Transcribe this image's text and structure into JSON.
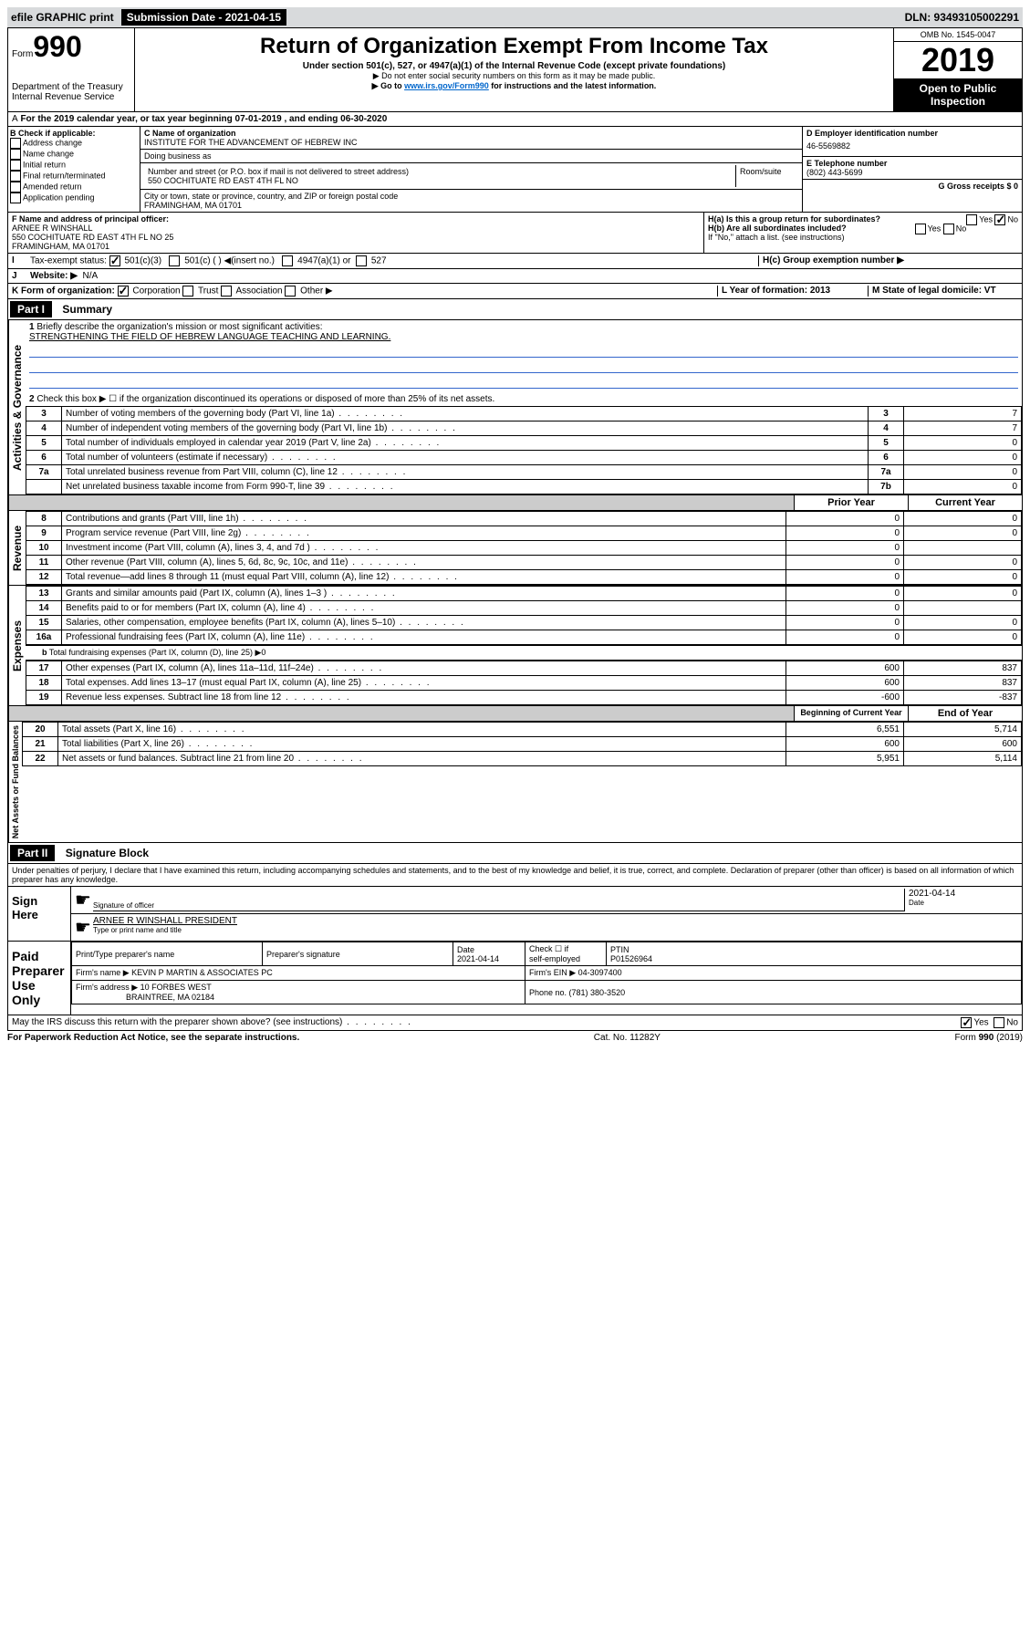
{
  "topbar": {
    "efile": "efile GRAPHIC print",
    "submission": "Submission Date - 2021-04-15",
    "dln": "DLN: 93493105002291"
  },
  "titleblock": {
    "form_word": "Form",
    "form_num": "990",
    "dept": "Department of the Treasury\nInternal Revenue Service",
    "title": "Return of Organization Exempt From Income Tax",
    "subtitle": "Under section 501(c), 527, or 4947(a)(1) of the Internal Revenue Code (except private foundations)",
    "note1": "▶ Do not enter social security numbers on this form as it may be made public.",
    "note2_pre": "▶ Go to ",
    "note2_link": "www.irs.gov/Form990",
    "note2_post": " for instructions and the latest information.",
    "omb": "OMB No. 1545-0047",
    "year": "2019",
    "open": "Open to Public Inspection"
  },
  "period": "For the 2019 calendar year, or tax year beginning 07-01-2019    , and ending 06-30-2020",
  "secB": {
    "header": "B Check if applicable:",
    "items": [
      "Address change",
      "Name change",
      "Initial return",
      "Final return/terminated",
      "Amended return",
      "Application pending"
    ]
  },
  "secC": {
    "label": "C Name of organization",
    "name": "INSTITUTE FOR THE ADVANCEMENT OF HEBREW INC",
    "dba_label": "Doing business as",
    "addr_label": "Number and street (or P.O. box if mail is not delivered to street address)",
    "room_label": "Room/suite",
    "addr": "550 COCHITUATE RD EAST 4TH FL NO",
    "city_label": "City or town, state or province, country, and ZIP or foreign postal code",
    "city": "FRAMINGHAM, MA  01701"
  },
  "secD": {
    "label": "D Employer identification number",
    "val": "46-5569882"
  },
  "secE": {
    "label": "E Telephone number",
    "val": "(802) 443-5699"
  },
  "secG": {
    "label": "G Gross receipts $ 0"
  },
  "secF": {
    "label": "F  Name and address of principal officer:",
    "name": "ARNEE R WINSHALL",
    "addr1": "550 COCHITUATE RD EAST 4TH FL NO 25",
    "addr2": "FRAMINGHAM, MA  01701"
  },
  "secH": {
    "a": "H(a)  Is this a group return for subordinates?",
    "b": "H(b)  Are all subordinates included?",
    "note": "If \"No,\" attach a list. (see instructions)",
    "c": "H(c)  Group exemption number ▶"
  },
  "secI": {
    "label": "Tax-exempt status:",
    "opt1": "501(c)(3)",
    "opt2": "501(c) (  ) ◀(insert no.)",
    "opt3": "4947(a)(1) or",
    "opt4": "527"
  },
  "secJ": {
    "label": "Website: ▶",
    "val": "N/A"
  },
  "secK": {
    "label": "K Form of organization:",
    "corp": "Corporation",
    "trust": "Trust",
    "assoc": "Association",
    "other": "Other ▶"
  },
  "secL": {
    "label": "L Year of formation: 2013"
  },
  "secM": {
    "label": "M State of legal domicile: VT"
  },
  "part1": {
    "header": "Part I",
    "title": "Summary"
  },
  "summary": {
    "q1": "Briefly describe the organization's mission or most significant activities:",
    "mission": "STRENGTHENING THE FIELD OF HEBREW LANGUAGE TEACHING AND LEARNING.",
    "q2": "Check this box ▶ ☐  if the organization discontinued its operations or disposed of more than 25% of its net assets.",
    "rows": [
      {
        "n": "3",
        "t": "Number of voting members of the governing body (Part VI, line 1a)",
        "c": "3",
        "v": "7"
      },
      {
        "n": "4",
        "t": "Number of independent voting members of the governing body (Part VI, line 1b)",
        "c": "4",
        "v": "7"
      },
      {
        "n": "5",
        "t": "Total number of individuals employed in calendar year 2019 (Part V, line 2a)",
        "c": "5",
        "v": "0"
      },
      {
        "n": "6",
        "t": "Total number of volunteers (estimate if necessary)",
        "c": "6",
        "v": "0"
      },
      {
        "n": "7a",
        "t": "Total unrelated business revenue from Part VIII, column (C), line 12",
        "c": "7a",
        "v": "0"
      },
      {
        "n": "",
        "t": "Net unrelated business taxable income from Form 990-T, line 39",
        "c": "7b",
        "v": "0"
      }
    ],
    "prior_hdr": "Prior Year",
    "current_hdr": "Current Year",
    "revenue": [
      {
        "n": "8",
        "t": "Contributions and grants (Part VIII, line 1h)",
        "p": "0",
        "c": "0"
      },
      {
        "n": "9",
        "t": "Program service revenue (Part VIII, line 2g)",
        "p": "0",
        "c": "0"
      },
      {
        "n": "10",
        "t": "Investment income (Part VIII, column (A), lines 3, 4, and 7d )",
        "p": "0",
        "c": ""
      },
      {
        "n": "11",
        "t": "Other revenue (Part VIII, column (A), lines 5, 6d, 8c, 9c, 10c, and 11e)",
        "p": "0",
        "c": "0"
      },
      {
        "n": "12",
        "t": "Total revenue—add lines 8 through 11 (must equal Part VIII, column (A), line 12)",
        "p": "0",
        "c": "0"
      }
    ],
    "expenses": [
      {
        "n": "13",
        "t": "Grants and similar amounts paid (Part IX, column (A), lines 1–3 )",
        "p": "0",
        "c": "0"
      },
      {
        "n": "14",
        "t": "Benefits paid to or for members (Part IX, column (A), line 4)",
        "p": "0",
        "c": ""
      },
      {
        "n": "15",
        "t": "Salaries, other compensation, employee benefits (Part IX, column (A), lines 5–10)",
        "p": "0",
        "c": "0"
      },
      {
        "n": "16a",
        "t": "Professional fundraising fees (Part IX, column (A), line 11e)",
        "p": "0",
        "c": "0"
      }
    ],
    "line_b": "Total fundraising expenses (Part IX, column (D), line 25) ▶0",
    "expenses2": [
      {
        "n": "17",
        "t": "Other expenses (Part IX, column (A), lines 11a–11d, 11f–24e)",
        "p": "600",
        "c": "837"
      },
      {
        "n": "18",
        "t": "Total expenses. Add lines 13–17 (must equal Part IX, column (A), line 25)",
        "p": "600",
        "c": "837"
      },
      {
        "n": "19",
        "t": "Revenue less expenses. Subtract line 18 from line 12",
        "p": "-600",
        "c": "-837"
      }
    ],
    "begin_hdr": "Beginning of Current Year",
    "end_hdr": "End of Year",
    "netassets": [
      {
        "n": "20",
        "t": "Total assets (Part X, line 16)",
        "p": "6,551",
        "c": "5,714"
      },
      {
        "n": "21",
        "t": "Total liabilities (Part X, line 26)",
        "p": "600",
        "c": "600"
      },
      {
        "n": "22",
        "t": "Net assets or fund balances. Subtract line 21 from line 20",
        "p": "5,951",
        "c": "5,114"
      }
    ]
  },
  "sidelabels": {
    "activities": "Activities & Governance",
    "revenue": "Revenue",
    "expenses": "Expenses",
    "netassets": "Net Assets or Fund Balances"
  },
  "part2": {
    "header": "Part II",
    "title": "Signature Block"
  },
  "perjury": "Under penalties of perjury, I declare that I have examined this return, including accompanying schedules and statements, and to the best of my knowledge and belief, it is true, correct, and complete. Declaration of preparer (other than officer) is based on all information of which preparer has any knowledge.",
  "sign": {
    "here": "Sign Here",
    "sig_label": "Signature of officer",
    "date": "2021-04-14",
    "date_label": "Date",
    "name": "ARNEE R WINSHALL  PRESIDENT",
    "name_label": "Type or print name and title"
  },
  "paid": {
    "title": "Paid Preparer Use Only",
    "hdr1": "Print/Type preparer's name",
    "hdr2": "Preparer's signature",
    "hdr3": "Date",
    "date_val": "2021-04-14",
    "hdr4_a": "Check ☐ if",
    "hdr4_b": "self-employed",
    "hdr5": "PTIN",
    "ptin": "P01526964",
    "firm_label": "Firm's name    ▶",
    "firm": "KEVIN P MARTIN & ASSOCIATES PC",
    "ein_label": "Firm's EIN ▶ 04-3097400",
    "addr_label": "Firm's address ▶",
    "addr1": "10 FORBES WEST",
    "addr2": "BRAINTREE, MA  02184",
    "phone": "Phone no. (781) 380-3520"
  },
  "discuss": "May the IRS discuss this return with the preparer shown above? (see instructions)",
  "footer": {
    "left": "For Paperwork Reduction Act Notice, see the separate instructions.",
    "mid": "Cat. No. 11282Y",
    "right": "Form 990 (2019)"
  }
}
